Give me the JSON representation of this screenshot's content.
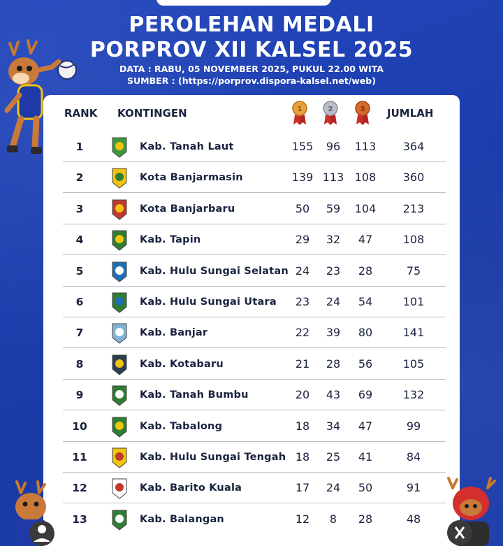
{
  "header": {
    "title_line1": "PEROLEHAN MEDALI",
    "title_line2": "PORPROV XII KALSEL 2025",
    "data_line": "DATA : RABU, 05 NOVEMBER 2025, PUKUL 22.00 WITA",
    "source_line": "SUMBER : (https://porprov.dispora-kalsel.net/web)"
  },
  "table": {
    "col_rank": "RANK",
    "col_contingent": "KONTINGEN",
    "col_total": "JUMLAH",
    "medal_icons": [
      "gold-medal-icon",
      "silver-medal-icon",
      "bronze-medal-icon"
    ],
    "rows": [
      {
        "rank": "1",
        "name": "Kab. Tanah Laut",
        "gold": "155",
        "silver": "96",
        "bronze": "113",
        "total": "364"
      },
      {
        "rank": "2",
        "name": "Kota Banjarmasin",
        "gold": "139",
        "silver": "113",
        "bronze": "108",
        "total": "360"
      },
      {
        "rank": "3",
        "name": "Kota Banjarbaru",
        "gold": "50",
        "silver": "59",
        "bronze": "104",
        "total": "213"
      },
      {
        "rank": "4",
        "name": "Kab. Tapin",
        "gold": "29",
        "silver": "32",
        "bronze": "47",
        "total": "108"
      },
      {
        "rank": "5",
        "name": "Kab. Hulu Sungai Selatan",
        "gold": "24",
        "silver": "23",
        "bronze": "28",
        "total": "75"
      },
      {
        "rank": "6",
        "name": "Kab. Hulu Sungai Utara",
        "gold": "23",
        "silver": "24",
        "bronze": "54",
        "total": "101"
      },
      {
        "rank": "7",
        "name": "Kab. Banjar",
        "gold": "22",
        "silver": "39",
        "bronze": "80",
        "total": "141"
      },
      {
        "rank": "8",
        "name": "Kab. Kotabaru",
        "gold": "21",
        "silver": "28",
        "bronze": "56",
        "total": "105"
      },
      {
        "rank": "9",
        "name": "Kab. Tanah Bumbu",
        "gold": "20",
        "silver": "43",
        "bronze": "69",
        "total": "132"
      },
      {
        "rank": "10",
        "name": "Kab. Tabalong",
        "gold": "18",
        "silver": "34",
        "bronze": "47",
        "total": "99"
      },
      {
        "rank": "11",
        "name": "Kab. Hulu Sungai Tengah",
        "gold": "18",
        "silver": "25",
        "bronze": "41",
        "total": "84"
      },
      {
        "rank": "12",
        "name": "Kab. Barito Kuala",
        "gold": "17",
        "silver": "24",
        "bronze": "50",
        "total": "91"
      },
      {
        "rank": "13",
        "name": "Kab. Balangan",
        "gold": "12",
        "silver": "8",
        "bronze": "28",
        "total": "48"
      }
    ]
  },
  "colors": {
    "background": "#1c3fae",
    "gold": "#e9a23b",
    "silver": "#b9bec6",
    "bronze": "#d66a2c",
    "medal_ribbon": "#c9302c"
  }
}
